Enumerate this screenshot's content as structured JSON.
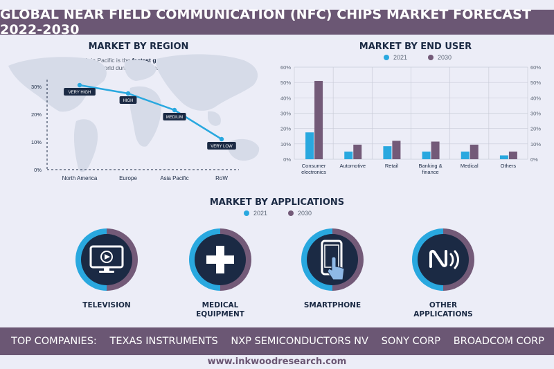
{
  "header": {
    "title": "GLOBAL NEAR FIELD COMMUNICATION (NFC) CHIPS MARKET FORECAST 2022-2030"
  },
  "region": {
    "title": "MARKET BY REGION",
    "note_pre": "The Asia Pacific is the ",
    "note_bold": "fastest growing region",
    "note_post": " in the world during the forecast period."
  },
  "end_user": {
    "title": "MARKET BY END USER",
    "legend": [
      {
        "label": "2021",
        "color": "#29a8df"
      },
      {
        "label": "2030",
        "color": "#735a78"
      }
    ]
  },
  "applications": {
    "title": "MARKET BY APPLICATIONS",
    "legend": [
      {
        "label": "2021",
        "color": "#29a8df"
      },
      {
        "label": "2030",
        "color": "#735a78"
      }
    ],
    "items": [
      {
        "label_line1": "TELEVISION",
        "label_line2": "",
        "icon": "television-icon",
        "share_2021": 0.5
      },
      {
        "label_line1": "MEDICAL",
        "label_line2": "EQUIPMENT",
        "icon": "medical-cross-icon",
        "share_2021": 0.5
      },
      {
        "label_line1": "SMARTPHONE",
        "label_line2": "",
        "icon": "smartphone-icon",
        "share_2021": 0.5
      },
      {
        "label_line1": "OTHER",
        "label_line2": "APPLICATIONS",
        "icon": "nfc-icon",
        "share_2021": 0.5
      }
    ]
  },
  "companies": {
    "label": "TOP COMPANIES:",
    "names": [
      "TEXAS INSTRUMENTS",
      "NXP SEMICONDUCTORS NV",
      "SONY CORP",
      "BROADCOM CORP"
    ]
  },
  "footer": {
    "url": "www.inkwoodresearch.com"
  },
  "colors": {
    "accent_blue": "#29a8df",
    "accent_purple": "#735a78",
    "navy": "#1b2a44",
    "banner": "#6b5774"
  },
  "chart_data": [
    {
      "type": "line",
      "categories": [
        "North America",
        "Europe",
        "Asia Pacific",
        "RoW"
      ],
      "values": [
        30.5,
        27.5,
        21.5,
        11
      ],
      "point_labels": [
        "VERY HIGH",
        "HIGH",
        "MEDIUM",
        "VERY LOW"
      ],
      "yticks": [
        "0%",
        "10%",
        "20%",
        "30%"
      ],
      "ylim": [
        0,
        30
      ],
      "grid": false
    },
    {
      "type": "bar",
      "categories": [
        [
          "Consumer",
          "electronics"
        ],
        [
          "Automotive"
        ],
        [
          "Retail"
        ],
        [
          "Banking &",
          "finance"
        ],
        [
          "Medical"
        ],
        [
          "Others"
        ]
      ],
      "series": [
        {
          "name": "2021",
          "values": [
            17.5,
            5,
            8.5,
            5,
            5,
            2.5
          ]
        },
        {
          "name": "2030",
          "values": [
            51,
            9.5,
            12,
            11.5,
            9.5,
            5
          ]
        }
      ],
      "yticks": [
        "0%",
        "10%",
        "20%",
        "30%",
        "40%",
        "50%",
        "60%"
      ],
      "ylim": [
        0,
        60
      ],
      "grid": true,
      "legend": "top"
    }
  ]
}
